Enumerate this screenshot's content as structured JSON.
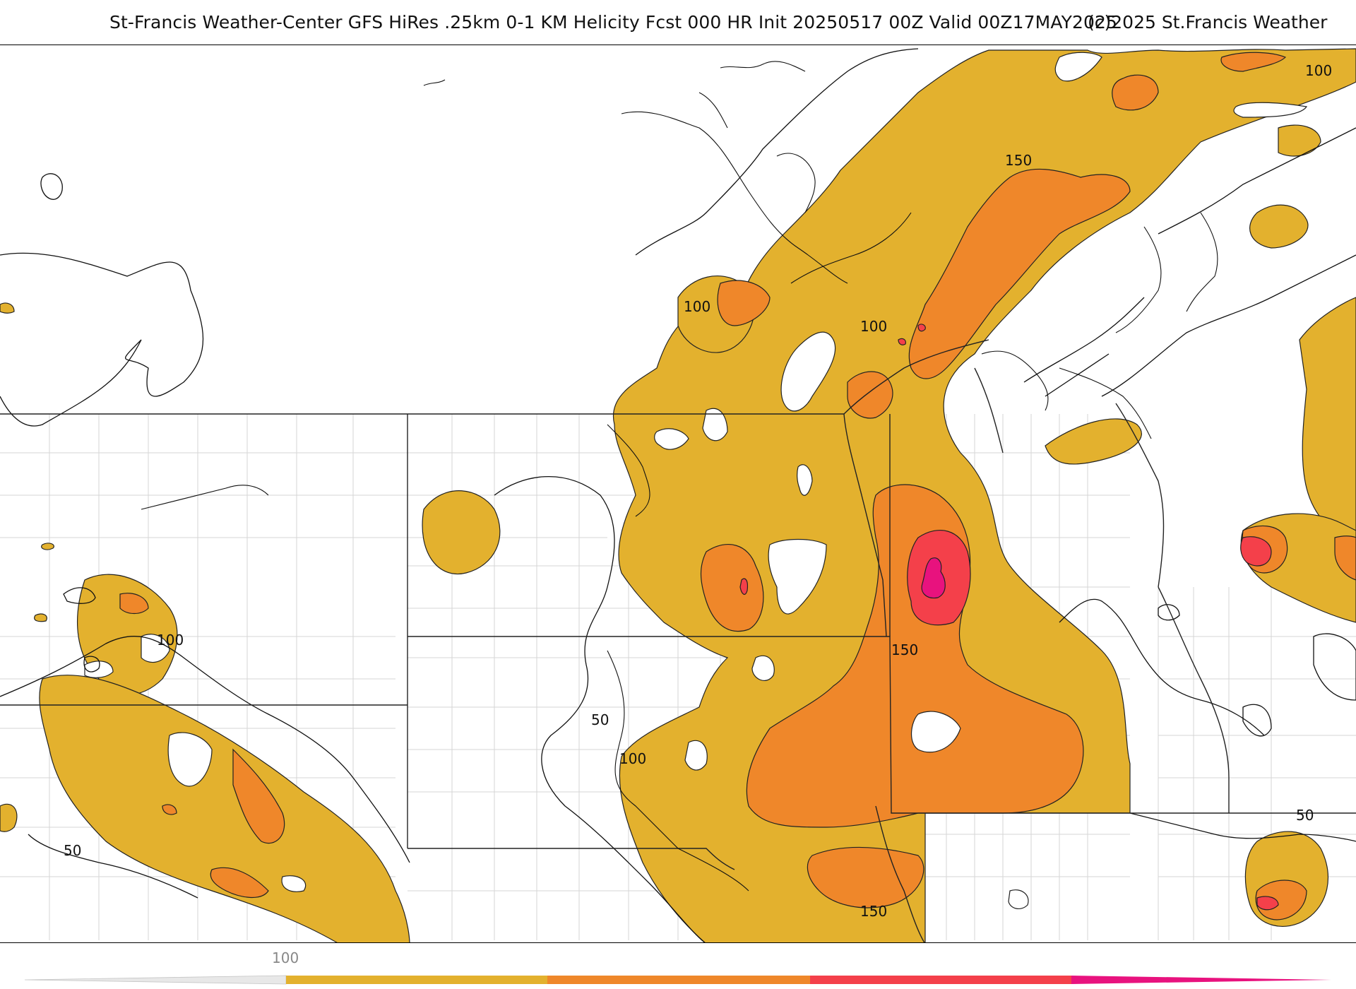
{
  "header": {
    "title": "St-Francis Weather-Center GFS HiRes .25km 0-1 KM Helicity Fcst 000 HR Init 20250517 00Z  Valid 00Z17MAY2025",
    "copyright": "(c)2025 St.Francis Weather"
  },
  "map": {
    "contour_labels": [
      "100",
      "100",
      "100",
      "150",
      "150",
      "100",
      "50",
      "100",
      "150",
      "100",
      "50",
      "50"
    ]
  },
  "colorbar": {
    "tick_label": "100",
    "colors": [
      "#e0e0e0",
      "#e3b12e",
      "#ef872a",
      "#f4404a",
      "#e8127e"
    ]
  }
}
